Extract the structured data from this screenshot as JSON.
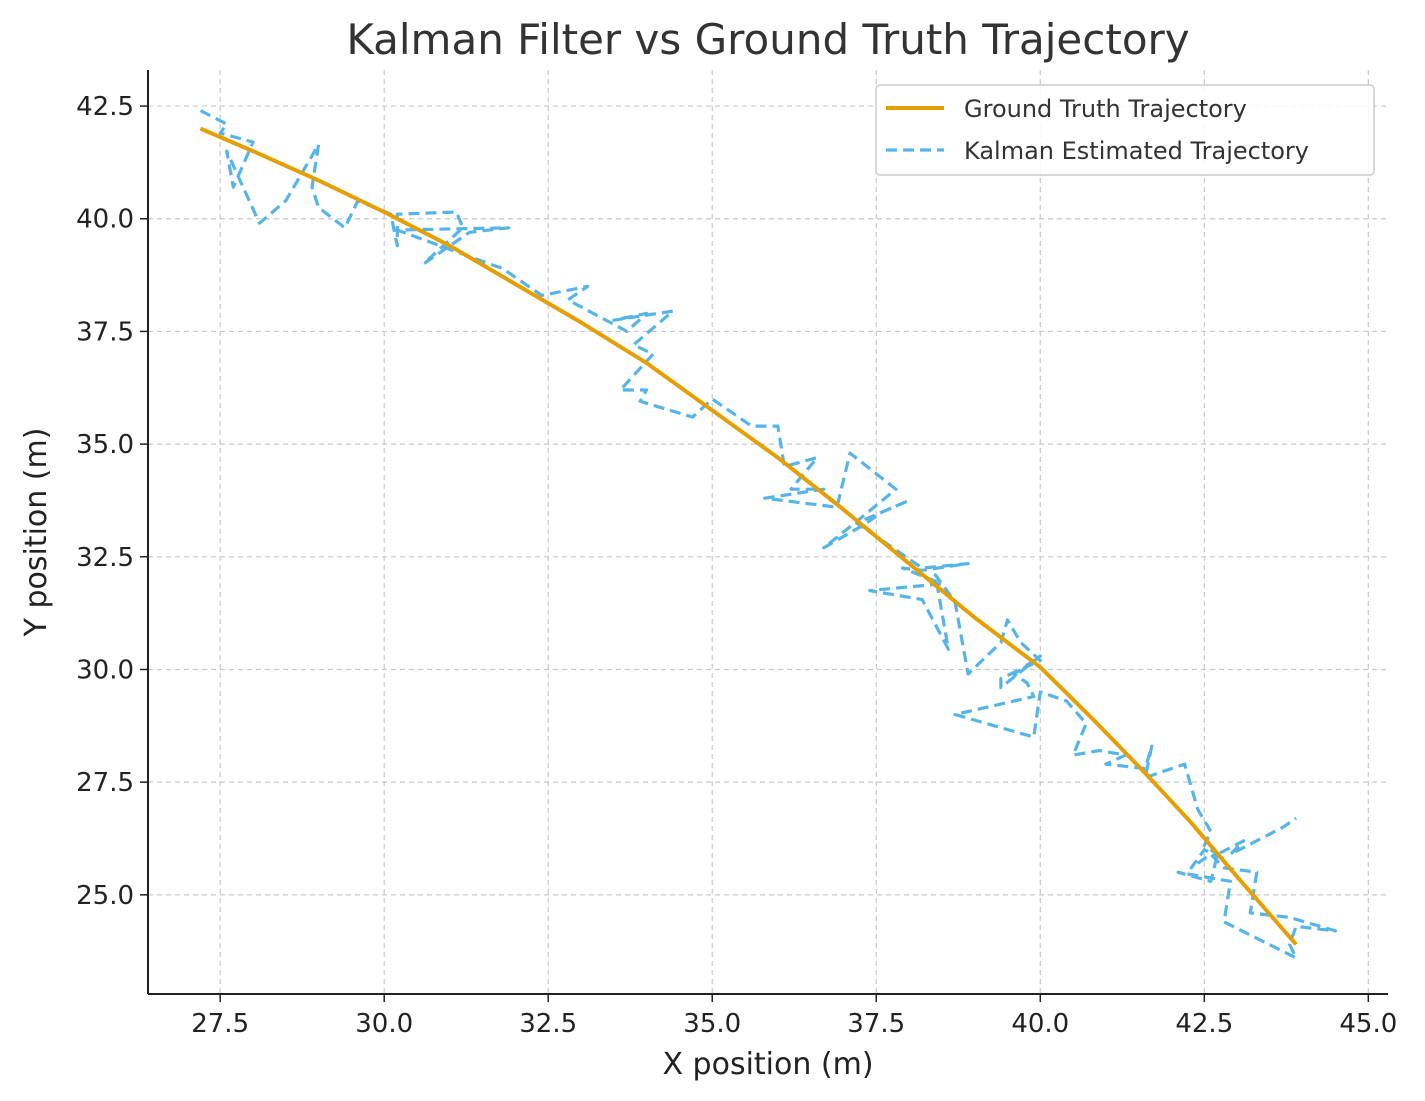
{
  "chart_data": {
    "type": "line",
    "title": "Kalman Filter vs Ground Truth Trajectory",
    "xlabel": "X position (m)",
    "ylabel": "Y position (m)",
    "xlim": [
      26.4,
      45.3
    ],
    "ylim": [
      22.8,
      43.3
    ],
    "xticks": [
      27.5,
      30.0,
      32.5,
      35.0,
      37.5,
      40.0,
      42.5,
      45.0
    ],
    "yticks": [
      25.0,
      27.5,
      30.0,
      32.5,
      35.0,
      37.5,
      40.0,
      42.5
    ],
    "xtick_labels": [
      "27.5",
      "30.0",
      "32.5",
      "35.0",
      "37.5",
      "40.0",
      "42.5",
      "45.0"
    ],
    "ytick_labels": [
      "25.0",
      "27.5",
      "30.0",
      "32.5",
      "35.0",
      "37.5",
      "40.0",
      "42.5"
    ],
    "grid": true,
    "legend_position": "top-right",
    "series": [
      {
        "name": "Ground Truth Trajectory",
        "color": "#E69F00",
        "style": "solid",
        "points": [
          [
            27.2,
            42.0
          ],
          [
            28.0,
            41.5
          ],
          [
            29.0,
            40.85
          ],
          [
            30.0,
            40.15
          ],
          [
            31.0,
            39.4
          ],
          [
            32.0,
            38.55
          ],
          [
            33.0,
            37.7
          ],
          [
            34.0,
            36.8
          ],
          [
            35.0,
            35.75
          ],
          [
            36.0,
            34.7
          ],
          [
            37.0,
            33.55
          ],
          [
            38.0,
            32.35
          ],
          [
            39.0,
            31.15
          ],
          [
            40.0,
            30.05
          ],
          [
            40.8,
            28.9
          ],
          [
            41.6,
            27.7
          ],
          [
            42.3,
            26.6
          ],
          [
            43.0,
            25.4
          ],
          [
            43.9,
            23.9
          ]
        ]
      },
      {
        "name": "Kalman Estimated Trajectory",
        "color": "#56B4E9",
        "style": "dashed",
        "points": [
          [
            27.2,
            42.4
          ],
          [
            27.6,
            42.1
          ],
          [
            27.5,
            41.9
          ],
          [
            28.0,
            41.7
          ],
          [
            27.7,
            40.7
          ],
          [
            27.6,
            41.5
          ],
          [
            28.1,
            39.9
          ],
          [
            28.5,
            40.4
          ],
          [
            29.0,
            41.65
          ],
          [
            28.9,
            40.7
          ],
          [
            29.0,
            40.25
          ],
          [
            29.4,
            39.8
          ],
          [
            29.6,
            40.4
          ],
          [
            30.1,
            40.1
          ],
          [
            30.2,
            39.4
          ],
          [
            30.2,
            40.1
          ],
          [
            31.1,
            40.15
          ],
          [
            31.2,
            39.8
          ],
          [
            30.6,
            39.0
          ],
          [
            31.3,
            39.7
          ],
          [
            31.9,
            39.8
          ],
          [
            30.2,
            39.75
          ],
          [
            31.6,
            39.0
          ],
          [
            31.8,
            38.9
          ],
          [
            32.1,
            38.6
          ],
          [
            32.4,
            38.3
          ],
          [
            33.1,
            38.5
          ],
          [
            32.8,
            38.2
          ],
          [
            33.7,
            37.5
          ],
          [
            34.0,
            37.9
          ],
          [
            33.5,
            37.75
          ],
          [
            34.4,
            37.95
          ],
          [
            33.8,
            37.2
          ],
          [
            34.1,
            37.0
          ],
          [
            33.6,
            36.2
          ],
          [
            34.0,
            36.2
          ],
          [
            33.9,
            35.95
          ],
          [
            34.7,
            35.6
          ],
          [
            35.0,
            36.0
          ],
          [
            35.6,
            35.4
          ],
          [
            36.0,
            35.4
          ],
          [
            36.1,
            34.5
          ],
          [
            36.6,
            34.7
          ],
          [
            36.2,
            34.0
          ],
          [
            36.7,
            34.0
          ],
          [
            35.8,
            33.8
          ],
          [
            36.9,
            33.6
          ],
          [
            37.1,
            34.8
          ],
          [
            37.8,
            34.0
          ],
          [
            37.3,
            33.4
          ],
          [
            36.7,
            32.7
          ],
          [
            37.3,
            33.2
          ],
          [
            37.6,
            33.5
          ],
          [
            38.0,
            33.75
          ],
          [
            37.2,
            33.25
          ],
          [
            37.7,
            32.75
          ],
          [
            38.2,
            32.25
          ],
          [
            38.9,
            32.35
          ],
          [
            38.2,
            32.2
          ],
          [
            37.9,
            32.25
          ],
          [
            38.5,
            31.9
          ],
          [
            37.4,
            31.75
          ],
          [
            38.2,
            31.55
          ],
          [
            38.6,
            30.45
          ],
          [
            38.4,
            32.1
          ],
          [
            38.7,
            31.5
          ],
          [
            38.8,
            30.7
          ],
          [
            38.9,
            29.9
          ],
          [
            39.4,
            30.6
          ],
          [
            39.5,
            31.1
          ],
          [
            39.7,
            30.6
          ],
          [
            40.0,
            30.2
          ],
          [
            39.4,
            29.8
          ],
          [
            39.4,
            29.6
          ],
          [
            40.0,
            30.3
          ],
          [
            39.6,
            29.9
          ],
          [
            39.8,
            29.7
          ],
          [
            39.9,
            29.4
          ],
          [
            38.7,
            29.0
          ],
          [
            39.9,
            28.5
          ],
          [
            40.0,
            29.5
          ],
          [
            40.4,
            29.3
          ],
          [
            40.7,
            28.8
          ],
          [
            40.5,
            28.1
          ],
          [
            40.9,
            28.2
          ],
          [
            41.3,
            28.1
          ],
          [
            41.0,
            27.9
          ],
          [
            41.6,
            27.8
          ],
          [
            41.7,
            28.3
          ],
          [
            41.6,
            27.6
          ],
          [
            42.2,
            27.9
          ],
          [
            42.4,
            26.9
          ],
          [
            42.6,
            26.4
          ],
          [
            42.5,
            26.1
          ],
          [
            42.8,
            25.8
          ],
          [
            42.5,
            26.0
          ],
          [
            42.3,
            25.6
          ],
          [
            42.6,
            25.9
          ],
          [
            42.8,
            25.6
          ],
          [
            43.3,
            25.5
          ],
          [
            43.2,
            24.6
          ],
          [
            43.8,
            24.5
          ],
          [
            44.5,
            24.2
          ],
          [
            43.9,
            24.3
          ],
          [
            43.8,
            23.9
          ],
          [
            43.9,
            23.6
          ],
          [
            42.8,
            24.4
          ],
          [
            42.9,
            25.3
          ],
          [
            42.1,
            25.5
          ],
          [
            42.6,
            25.3
          ],
          [
            42.7,
            25.9
          ],
          [
            43.1,
            26.2
          ],
          [
            42.9,
            25.9
          ],
          [
            43.7,
            26.5
          ],
          [
            43.9,
            26.7
          ]
        ]
      }
    ]
  }
}
